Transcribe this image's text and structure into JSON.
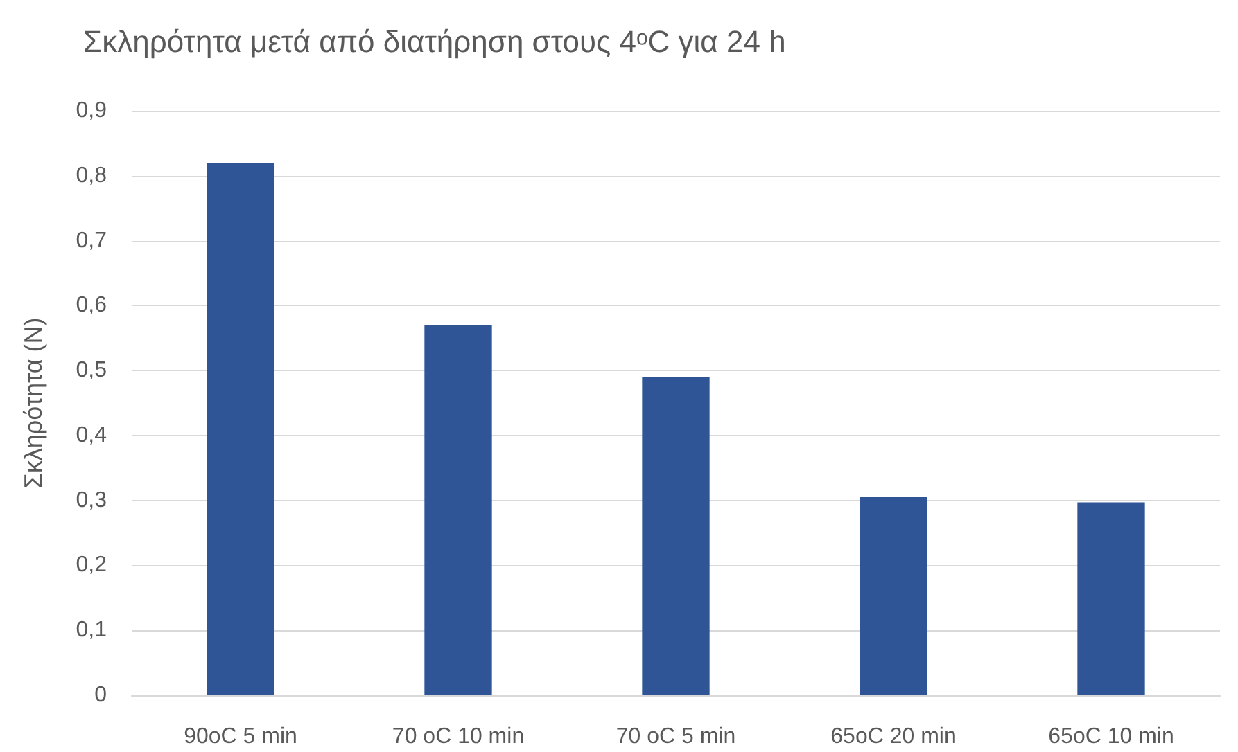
{
  "chart_data": {
    "type": "bar",
    "title": "Σκληρότητα μετά από διατήρηση στους 4ᵒC για 24 h",
    "ylabel": "Σκληρότητα (N)",
    "categories": [
      "90oC 5 min",
      "70 oC 10 min",
      "70 oC 5 min",
      "65oC 20 min",
      "65oC 10 min"
    ],
    "values": [
      0.82,
      0.57,
      0.49,
      0.305,
      0.297
    ],
    "color": "#2f5597",
    "ylim": [
      0,
      0.9
    ],
    "yticks": [
      {
        "value": 0,
        "label": "0"
      },
      {
        "value": 0.1,
        "label": "0,1"
      },
      {
        "value": 0.2,
        "label": "0,2"
      },
      {
        "value": 0.3,
        "label": "0,3"
      },
      {
        "value": 0.4,
        "label": "0,4"
      },
      {
        "value": 0.5,
        "label": "0,5"
      },
      {
        "value": 0.6,
        "label": "0,6"
      },
      {
        "value": 0.7,
        "label": "0,7"
      },
      {
        "value": 0.8,
        "label": "0,8"
      },
      {
        "value": 0.9,
        "label": "0,9"
      }
    ],
    "grid": "y"
  }
}
